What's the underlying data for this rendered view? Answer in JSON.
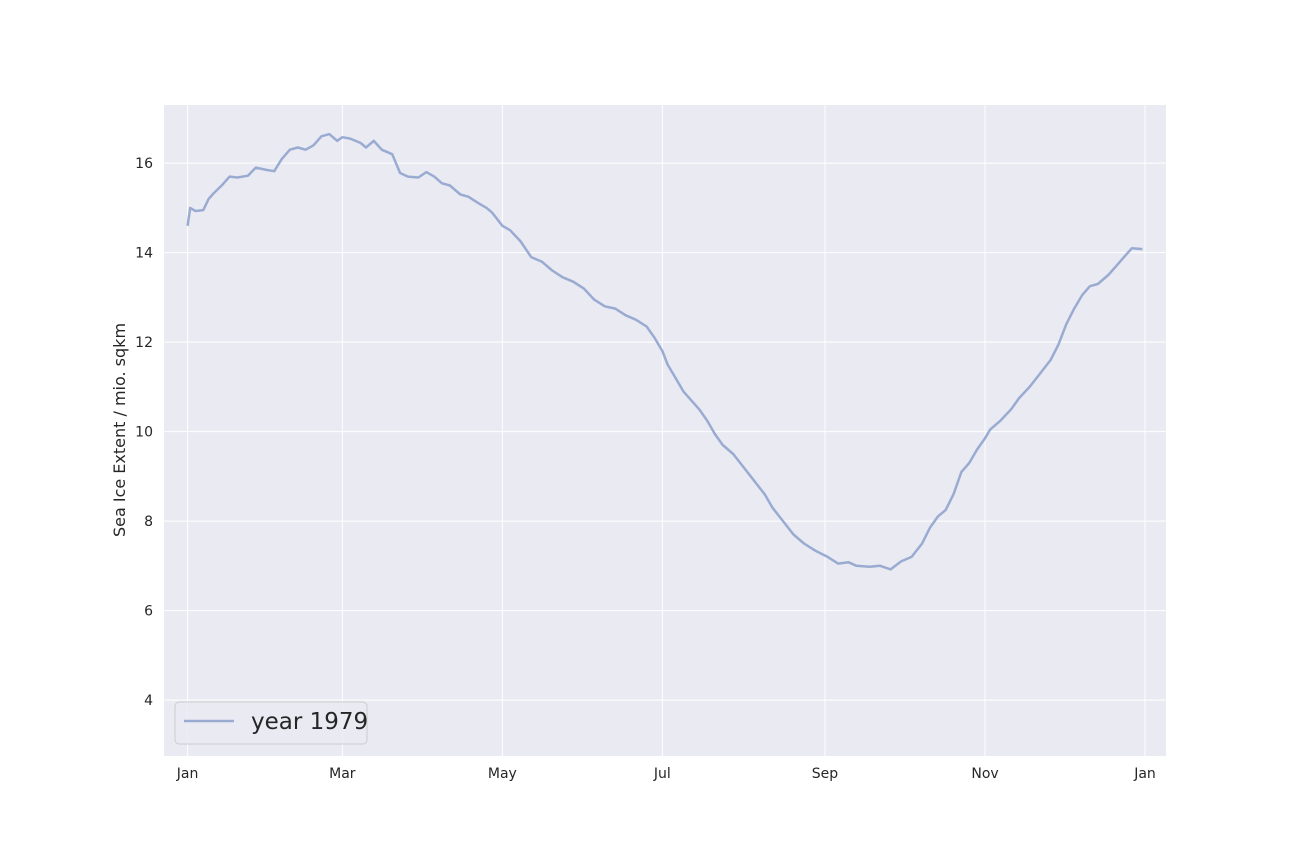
{
  "chart_data": {
    "type": "line",
    "title": "",
    "xlabel": "",
    "ylabel": "Sea Ice Extent / mio. sqkm",
    "xlim": [
      "1978-12-23",
      "1980-01-09"
    ],
    "ylim": [
      2.75,
      17.3
    ],
    "x_ticks": [
      {
        "date": "1979-01-01",
        "label": "Jan"
      },
      {
        "date": "1979-03-01",
        "label": "Mar"
      },
      {
        "date": "1979-05-01",
        "label": "May"
      },
      {
        "date": "1979-07-01",
        "label": "Jul"
      },
      {
        "date": "1979-09-01",
        "label": "Sep"
      },
      {
        "date": "1979-11-01",
        "label": "Nov"
      },
      {
        "date": "1980-01-01",
        "label": "Jan"
      }
    ],
    "y_ticks": [
      4,
      6,
      8,
      10,
      12,
      14,
      16
    ],
    "grid": true,
    "legend": "lower-left",
    "colors": {
      "background": "#eaeaf2",
      "grid": "#ffffff",
      "line": "#9aabd2"
    },
    "series": [
      {
        "name": "year 1979",
        "points": [
          [
            "1979-01-01",
            14.6
          ],
          [
            "1979-01-02",
            15.0
          ],
          [
            "1979-01-04",
            14.93
          ],
          [
            "1979-01-07",
            14.95
          ],
          [
            "1979-01-09",
            15.2
          ],
          [
            "1979-01-11",
            15.33
          ],
          [
            "1979-01-14",
            15.5
          ],
          [
            "1979-01-17",
            15.7
          ],
          [
            "1979-01-20",
            15.68
          ],
          [
            "1979-01-24",
            15.72
          ],
          [
            "1979-01-27",
            15.9
          ],
          [
            "1979-01-31",
            15.85
          ],
          [
            "1979-02-03",
            15.82
          ],
          [
            "1979-02-06",
            16.1
          ],
          [
            "1979-02-09",
            16.3
          ],
          [
            "1979-02-12",
            16.35
          ],
          [
            "1979-02-15",
            16.3
          ],
          [
            "1979-02-18",
            16.4
          ],
          [
            "1979-02-21",
            16.6
          ],
          [
            "1979-02-24",
            16.65
          ],
          [
            "1979-02-27",
            16.5
          ],
          [
            "1979-03-01",
            16.58
          ],
          [
            "1979-03-04",
            16.55
          ],
          [
            "1979-03-08",
            16.45
          ],
          [
            "1979-03-10",
            16.35
          ],
          [
            "1979-03-13",
            16.5
          ],
          [
            "1979-03-16",
            16.3
          ],
          [
            "1979-03-20",
            16.2
          ],
          [
            "1979-03-23",
            15.78
          ],
          [
            "1979-03-26",
            15.7
          ],
          [
            "1979-03-30",
            15.68
          ],
          [
            "1979-04-02",
            15.8
          ],
          [
            "1979-04-05",
            15.7
          ],
          [
            "1979-04-08",
            15.55
          ],
          [
            "1979-04-11",
            15.5
          ],
          [
            "1979-04-15",
            15.3
          ],
          [
            "1979-04-18",
            15.25
          ],
          [
            "1979-04-22",
            15.1
          ],
          [
            "1979-04-25",
            15.0
          ],
          [
            "1979-04-27",
            14.9
          ],
          [
            "1979-05-01",
            14.6
          ],
          [
            "1979-05-04",
            14.5
          ],
          [
            "1979-05-08",
            14.25
          ],
          [
            "1979-05-12",
            13.9
          ],
          [
            "1979-05-16",
            13.8
          ],
          [
            "1979-05-20",
            13.6
          ],
          [
            "1979-05-24",
            13.45
          ],
          [
            "1979-05-28",
            13.35
          ],
          [
            "1979-06-01",
            13.2
          ],
          [
            "1979-06-05",
            12.95
          ],
          [
            "1979-06-09",
            12.8
          ],
          [
            "1979-06-13",
            12.75
          ],
          [
            "1979-06-17",
            12.6
          ],
          [
            "1979-06-21",
            12.5
          ],
          [
            "1979-06-25",
            12.35
          ],
          [
            "1979-06-28",
            12.1
          ],
          [
            "1979-07-01",
            11.8
          ],
          [
            "1979-07-03",
            11.5
          ],
          [
            "1979-07-06",
            11.2
          ],
          [
            "1979-07-09",
            10.9
          ],
          [
            "1979-07-12",
            10.7
          ],
          [
            "1979-07-15",
            10.5
          ],
          [
            "1979-07-18",
            10.25
          ],
          [
            "1979-07-21",
            9.95
          ],
          [
            "1979-07-24",
            9.7
          ],
          [
            "1979-07-28",
            9.5
          ],
          [
            "1979-08-01",
            9.2
          ],
          [
            "1979-08-05",
            8.9
          ],
          [
            "1979-08-09",
            8.6
          ],
          [
            "1979-08-12",
            8.3
          ],
          [
            "1979-08-16",
            8.0
          ],
          [
            "1979-08-20",
            7.7
          ],
          [
            "1979-08-24",
            7.5
          ],
          [
            "1979-08-28",
            7.35
          ],
          [
            "1979-09-02",
            7.2
          ],
          [
            "1979-09-06",
            7.05
          ],
          [
            "1979-09-10",
            7.08
          ],
          [
            "1979-09-13",
            7.0
          ],
          [
            "1979-09-18",
            6.98
          ],
          [
            "1979-09-22",
            7.0
          ],
          [
            "1979-09-26",
            6.92
          ],
          [
            "1979-09-30",
            7.1
          ],
          [
            "1979-10-04",
            7.2
          ],
          [
            "1979-10-08",
            7.5
          ],
          [
            "1979-10-11",
            7.85
          ],
          [
            "1979-10-14",
            8.1
          ],
          [
            "1979-10-17",
            8.25
          ],
          [
            "1979-10-20",
            8.6
          ],
          [
            "1979-10-23",
            9.1
          ],
          [
            "1979-10-26",
            9.3
          ],
          [
            "1979-10-29",
            9.6
          ],
          [
            "1979-11-01",
            9.85
          ],
          [
            "1979-11-03",
            10.05
          ],
          [
            "1979-11-07",
            10.25
          ],
          [
            "1979-11-11",
            10.5
          ],
          [
            "1979-11-14",
            10.75
          ],
          [
            "1979-11-18",
            11.0
          ],
          [
            "1979-11-22",
            11.3
          ],
          [
            "1979-11-26",
            11.6
          ],
          [
            "1979-11-29",
            11.95
          ],
          [
            "1979-12-02",
            12.4
          ],
          [
            "1979-12-05",
            12.75
          ],
          [
            "1979-12-08",
            13.05
          ],
          [
            "1979-12-11",
            13.25
          ],
          [
            "1979-12-14",
            13.3
          ],
          [
            "1979-12-18",
            13.5
          ],
          [
            "1979-12-21",
            13.7
          ],
          [
            "1979-12-24",
            13.9
          ],
          [
            "1979-12-27",
            14.1
          ],
          [
            "1979-12-31",
            14.08
          ]
        ]
      }
    ]
  }
}
